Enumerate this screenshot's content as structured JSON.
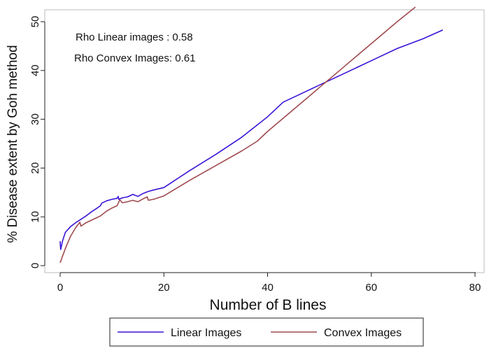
{
  "chart_data": {
    "type": "line",
    "xlabel": "Number of B lines",
    "ylabel": "% Disease extent by Goh method",
    "xlim": [
      0,
      80
    ],
    "ylim": [
      0,
      50
    ],
    "xticks": [
      "0",
      "20",
      "40",
      "60",
      "80"
    ],
    "yticks": [
      "0",
      "10",
      "20",
      "30",
      "40",
      "50"
    ],
    "xtick_values": [
      0,
      20,
      40,
      60,
      80
    ],
    "ytick_values": [
      0,
      10,
      20,
      30,
      40,
      50
    ],
    "grid": false,
    "legend_position": "bottom",
    "annotations": [
      "Rho Linear images : 0.58",
      "Rho Convex Images: 0.61"
    ],
    "series": [
      {
        "name": "Linear Images",
        "color": "#3b14d6",
        "points": [
          [
            0,
            5
          ],
          [
            0.1,
            3.3
          ],
          [
            0.5,
            5.2
          ],
          [
            1,
            6.8
          ],
          [
            2,
            8
          ],
          [
            3,
            8.8
          ],
          [
            4,
            9.5
          ],
          [
            5,
            10.2
          ],
          [
            6,
            11
          ],
          [
            7,
            11.7
          ],
          [
            7.8,
            12.3
          ],
          [
            8,
            12.8
          ],
          [
            9,
            13.3
          ],
          [
            10,
            13.6
          ],
          [
            11,
            13.8
          ],
          [
            11.2,
            14.2
          ],
          [
            11.3,
            13.6
          ],
          [
            12,
            13.9
          ],
          [
            13,
            14.1
          ],
          [
            14,
            14.6
          ],
          [
            15,
            14.2
          ],
          [
            16,
            14.8
          ],
          [
            17,
            15.2
          ],
          [
            18,
            15.5
          ],
          [
            20,
            16
          ],
          [
            25,
            19.5
          ],
          [
            30,
            22.8
          ],
          [
            35,
            26.3
          ],
          [
            40,
            30.5
          ],
          [
            43,
            33.5
          ],
          [
            46,
            35
          ],
          [
            50,
            37
          ],
          [
            55,
            39.5
          ],
          [
            60,
            42
          ],
          [
            65,
            44.5
          ],
          [
            70,
            46.5
          ],
          [
            73.8,
            48.3
          ]
        ]
      },
      {
        "name": "Convex Images",
        "color": "#a04a4e",
        "points": [
          [
            0,
            0.6
          ],
          [
            1,
            3.5
          ],
          [
            2,
            6
          ],
          [
            3,
            7.8
          ],
          [
            3.8,
            8.9
          ],
          [
            4,
            8.1
          ],
          [
            5,
            8.8
          ],
          [
            6,
            9.3
          ],
          [
            7,
            9.8
          ],
          [
            7.8,
            10.2
          ],
          [
            8.5,
            10.8
          ],
          [
            9,
            11.2
          ],
          [
            10,
            11.8
          ],
          [
            11,
            12.3
          ],
          [
            11.5,
            13.5
          ],
          [
            12,
            12.9
          ],
          [
            13,
            13.1
          ],
          [
            14,
            13.4
          ],
          [
            15,
            13.1
          ],
          [
            16,
            13.7
          ],
          [
            16.8,
            14.1
          ],
          [
            17,
            13.4
          ],
          [
            18,
            13.6
          ],
          [
            20,
            14.3
          ],
          [
            25,
            17.5
          ],
          [
            30,
            20.5
          ],
          [
            35,
            23.5
          ],
          [
            38,
            25.5
          ],
          [
            40,
            27.5
          ],
          [
            45,
            32
          ],
          [
            50,
            36.5
          ],
          [
            55,
            41
          ],
          [
            60,
            45.5
          ],
          [
            65,
            50
          ],
          [
            68.5,
            53
          ]
        ]
      }
    ]
  }
}
